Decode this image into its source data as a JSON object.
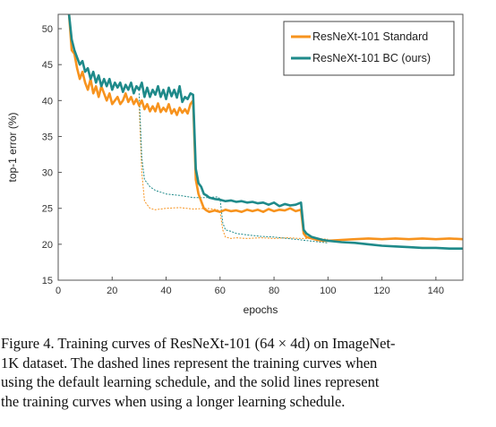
{
  "chart_data": {
    "type": "line",
    "xlabel": "epochs",
    "ylabel": "top-1 error (%)",
    "xlim": [
      0,
      150
    ],
    "ylim": [
      15,
      52
    ],
    "x_ticks": [
      0,
      20,
      40,
      60,
      80,
      100,
      120,
      140
    ],
    "y_ticks": [
      15,
      20,
      25,
      30,
      35,
      40,
      45,
      50
    ],
    "grid": false,
    "legend_position": "top-right",
    "series": [
      {
        "name": "ResNeXt-101 Standard",
        "color": "#f7931e",
        "style": "solid",
        "x": [
          4,
          5,
          6,
          7,
          8,
          9,
          10,
          11,
          12,
          13,
          14,
          15,
          16,
          17,
          18,
          19,
          20,
          21,
          22,
          23,
          24,
          25,
          26,
          27,
          28,
          29,
          30,
          31,
          32,
          33,
          34,
          35,
          36,
          37,
          38,
          39,
          40,
          41,
          42,
          43,
          44,
          45,
          46,
          47,
          48,
          49,
          50,
          51,
          52,
          53,
          54,
          55,
          56,
          58,
          60,
          62,
          64,
          66,
          68,
          70,
          72,
          74,
          76,
          78,
          80,
          82,
          84,
          86,
          88,
          90,
          91,
          92,
          94,
          96,
          98,
          100,
          105,
          110,
          115,
          120,
          125,
          130,
          135,
          140,
          145,
          150
        ],
        "y": [
          52,
          47,
          46.5,
          44.5,
          43,
          44,
          42.5,
          41.5,
          43,
          41,
          42,
          40.5,
          42,
          41,
          40,
          41,
          39.5,
          40,
          40.5,
          39.5,
          40,
          41,
          39.8,
          40.5,
          39.5,
          40.2,
          39.3,
          40,
          38.8,
          39.5,
          38.5,
          39.2,
          38.5,
          39.6,
          38.4,
          39,
          38.5,
          39.5,
          38.2,
          38.8,
          38,
          39,
          38.3,
          38.8,
          38.2,
          39.5,
          40,
          29,
          27,
          26,
          25,
          24.7,
          24.5,
          24.7,
          24.5,
          24.8,
          24.6,
          24.7,
          24.5,
          24.8,
          24.6,
          24.8,
          24.5,
          24.9,
          24.6,
          24.8,
          24.7,
          25,
          24.6,
          24.8,
          21.5,
          21,
          20.8,
          20.6,
          20.5,
          20.5,
          20.6,
          20.7,
          20.8,
          20.7,
          20.8,
          20.7,
          20.8,
          20.7,
          20.8,
          20.7
        ]
      },
      {
        "name": "ResNeXt-101 BC (ours)",
        "color": "#1f8a8a",
        "style": "solid",
        "x": [
          4,
          5,
          6,
          7,
          8,
          9,
          10,
          11,
          12,
          13,
          14,
          15,
          16,
          17,
          18,
          19,
          20,
          21,
          22,
          23,
          24,
          25,
          26,
          27,
          28,
          29,
          30,
          31,
          32,
          33,
          34,
          35,
          36,
          37,
          38,
          39,
          40,
          41,
          42,
          43,
          44,
          45,
          46,
          47,
          48,
          49,
          50,
          51,
          52,
          53,
          54,
          55,
          56,
          58,
          60,
          62,
          64,
          66,
          68,
          70,
          72,
          74,
          76,
          78,
          80,
          82,
          84,
          86,
          88,
          90,
          91,
          92,
          94,
          96,
          98,
          100,
          105,
          110,
          115,
          120,
          125,
          130,
          135,
          140,
          145,
          150
        ],
        "y": [
          52,
          48.5,
          47,
          46,
          45,
          45.5,
          44,
          44.5,
          43,
          44,
          42.5,
          43.5,
          42,
          43,
          42,
          43,
          41.5,
          42.5,
          41.8,
          42.5,
          41.2,
          42.2,
          41.5,
          42.5,
          41,
          42,
          41.5,
          42.5,
          40.5,
          41.8,
          40.5,
          41.5,
          40.8,
          42,
          40.5,
          41.5,
          40.2,
          41.8,
          40.6,
          41.5,
          40.4,
          42,
          39.8,
          40.5,
          40.2,
          41,
          40.8,
          30.5,
          28.5,
          28,
          27,
          26.8,
          26.5,
          26.3,
          26.2,
          26,
          26.1,
          25.9,
          26,
          25.8,
          25.9,
          25.7,
          25.8,
          25.5,
          25.8,
          25.3,
          25.6,
          25.4,
          25.5,
          25.8,
          22,
          21.5,
          21,
          20.8,
          20.6,
          20.5,
          20.3,
          20.2,
          20,
          19.8,
          19.7,
          19.6,
          19.5,
          19.5,
          19.4,
          19.4
        ]
      },
      {
        "color": "#f7931e",
        "style": "dashed",
        "x": [
          30,
          31,
          32,
          34,
          36,
          40,
          45,
          50,
          55,
          59,
          60,
          61,
          62,
          64,
          66,
          70,
          75,
          80,
          85,
          90,
          95,
          100
        ],
        "y": [
          39.3,
          30,
          26,
          25,
          24.8,
          25,
          25.1,
          24.9,
          25,
          24.8,
          24.5,
          22,
          21,
          20.8,
          20.9,
          20.8,
          20.9,
          20.8,
          20.9,
          20.8,
          20.8,
          20.7
        ]
      },
      {
        "color": "#1f8a8a",
        "style": "dashed",
        "x": [
          30,
          31,
          32,
          34,
          36,
          40,
          45,
          50,
          55,
          59,
          60,
          61,
          62,
          64,
          66,
          70,
          75,
          80,
          85,
          90,
          95,
          100
        ],
        "y": [
          41,
          32,
          29,
          28,
          27.5,
          27,
          26.8,
          26.5,
          26.5,
          26.6,
          26.3,
          23,
          22,
          21.8,
          21.5,
          21.3,
          21.1,
          21,
          20.8,
          20.6,
          20.4,
          20.2
        ]
      }
    ]
  },
  "caption": {
    "line1": "Figure 4. Training curves of ResNeXt-101 (64 × 4d) on ImageNet-",
    "line2": "1K dataset.  The dashed lines represent the training curves when",
    "line3": "using the default learning schedule, and the solid lines represent",
    "line4": "the training curves when using a longer learning schedule."
  }
}
